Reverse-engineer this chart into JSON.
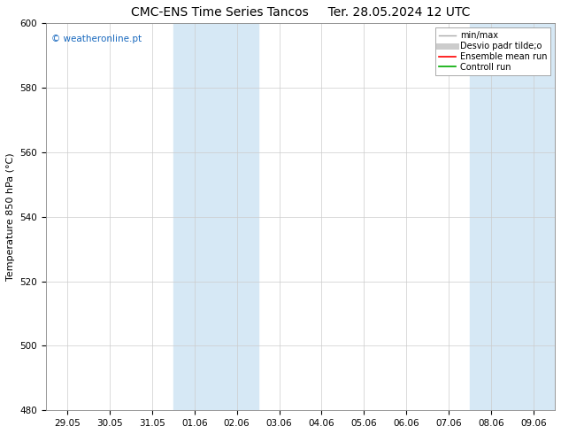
{
  "title_left": "CMC-ENS Time Series Tancos",
  "title_right": "Ter. 28.05.2024 12 UTC",
  "ylabel": "Temperature 850 hPa (°C)",
  "ylim": [
    480,
    600
  ],
  "yticks": [
    480,
    500,
    520,
    540,
    560,
    580,
    600
  ],
  "x_start": "2024-05-29",
  "x_end": "2024-06-09",
  "xtick_labels": [
    "29.05",
    "30.05",
    "31.05",
    "01.06",
    "02.06",
    "03.06",
    "04.06",
    "05.06",
    "06.06",
    "07.06",
    "08.06",
    "09.06"
  ],
  "shaded_bands": [
    {
      "start": 3,
      "end": 5
    },
    {
      "start": 10,
      "end": 12
    }
  ],
  "watermark": "© weatheronline.pt",
  "watermark_color": "#1a6abf",
  "background_color": "#ffffff",
  "plot_bg_color": "#ffffff",
  "band_color": "#d6e8f5",
  "legend_items": [
    {
      "label": "min/max",
      "color": "#aaaaaa",
      "lw": 1.0,
      "style": "-"
    },
    {
      "label": "Desvio padr tilde;o",
      "color": "#cccccc",
      "lw": 5,
      "style": "-"
    },
    {
      "label": "Ensemble mean run",
      "color": "#ff0000",
      "lw": 1.2,
      "style": "-"
    },
    {
      "label": "Controll run",
      "color": "#00aa00",
      "lw": 1.2,
      "style": "-"
    }
  ],
  "title_fontsize": 10,
  "tick_fontsize": 7.5,
  "ylabel_fontsize": 8,
  "legend_fontsize": 7
}
